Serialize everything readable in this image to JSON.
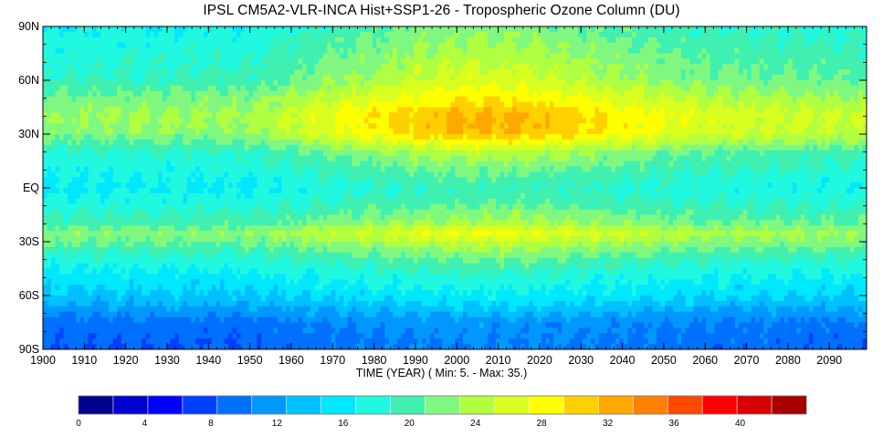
{
  "chart_data": {
    "type": "heatmap",
    "title": "IPSL CM5A2-VLR-INCA  Hist+SSP1-26 - Tropospheric Ozone Column (DU)",
    "xlabel": "TIME (YEAR) ( Min:    5. - Max:   35.)",
    "x_range": [
      1900,
      2099
    ],
    "x_ticks": [
      "1900",
      "1910",
      "1920",
      "1930",
      "1940",
      "1950",
      "1960",
      "1970",
      "1980",
      "1990",
      "2000",
      "2010",
      "2020",
      "2030",
      "2040",
      "2050",
      "2060",
      "2070",
      "2080",
      "2090"
    ],
    "y_range": [
      -90,
      90
    ],
    "y_ticks": [
      {
        "value": 90,
        "label": "90N"
      },
      {
        "value": 60,
        "label": "60N"
      },
      {
        "value": 30,
        "label": "30N"
      },
      {
        "value": 0,
        "label": "EQ"
      },
      {
        "value": -30,
        "label": "30S"
      },
      {
        "value": -60,
        "label": "60S"
      },
      {
        "value": -90,
        "label": "90S"
      }
    ],
    "value_min": 5,
    "value_max": 35,
    "grid": false,
    "colorbar": {
      "range": [
        0,
        44
      ],
      "step": 2,
      "tick_labels": [
        {
          "value": 0,
          "label": "0"
        },
        {
          "value": 4,
          "label": "4"
        },
        {
          "value": 8,
          "label": "8"
        },
        {
          "value": 12,
          "label": "12"
        },
        {
          "value": 16,
          "label": "16"
        },
        {
          "value": 20,
          "label": "20"
        },
        {
          "value": 24,
          "label": "24"
        },
        {
          "value": 28,
          "label": "28"
        },
        {
          "value": 32,
          "label": "32"
        },
        {
          "value": 36,
          "label": "36"
        },
        {
          "value": 40,
          "label": "40"
        }
      ],
      "colors": [
        "#00008f",
        "#0000cf",
        "#0000ff",
        "#0040ff",
        "#0070ff",
        "#0098ff",
        "#00c0ff",
        "#00e8ff",
        "#20f8e0",
        "#40f0b0",
        "#80f880",
        "#b0ff40",
        "#d8ff20",
        "#ffff00",
        "#ffd000",
        "#ffa800",
        "#ff8000",
        "#ff4800",
        "#ff0000",
        "#d80000",
        "#a80000"
      ]
    },
    "latitude_profile": {
      "lat": [
        90,
        75,
        60,
        50,
        40,
        30,
        20,
        10,
        0,
        -10,
        -20,
        -25,
        -30,
        -40,
        -50,
        -60,
        -65,
        -75,
        -90
      ],
      "base_1900": [
        16,
        17,
        18,
        20.5,
        22,
        21,
        17.5,
        16.5,
        15.5,
        17,
        19,
        21,
        20,
        17,
        15,
        13.5,
        12,
        9,
        8
      ],
      "increase_peak_2000_2010": [
        5,
        6,
        7,
        7,
        8.5,
        9,
        6,
        4,
        3,
        3,
        4,
        5.5,
        4,
        3,
        2.5,
        2,
        2,
        2,
        2
      ]
    }
  }
}
